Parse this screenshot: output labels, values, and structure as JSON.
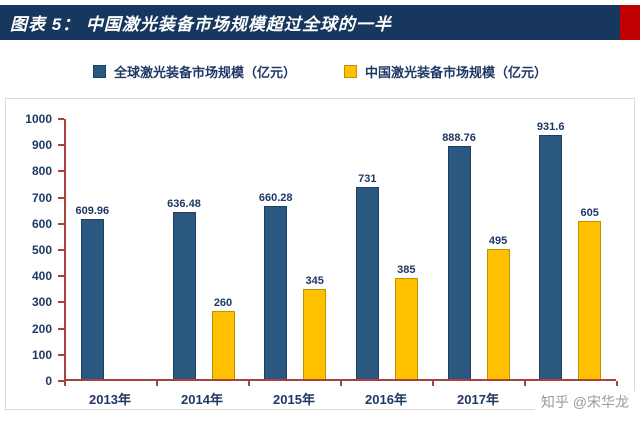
{
  "header": {
    "title": "图表 5： 中国激光装备市场规模超过全球的一半"
  },
  "colors": {
    "banner_bg": "#17375E",
    "banner_accent": "#C00000",
    "axis": "#A8423C",
    "axis_text": "#1F3864"
  },
  "chart_data": {
    "type": "bar",
    "title": "中国激光装备市场规模超过全球的一半",
    "categories": [
      "2013年",
      "2014年",
      "2015年",
      "2016年",
      "2017年",
      "2018年"
    ],
    "series": [
      {
        "key": "global",
        "name": "全球激光装备市场规模（亿元）",
        "color": "#2B5880",
        "border": "#1E3F5F",
        "values": [
          609.96,
          636.48,
          660.28,
          731,
          888.76,
          931.6
        ]
      },
      {
        "key": "china",
        "name": "中国激光装备市场规模（亿元）",
        "color": "#FFC000",
        "border": "#BF9000",
        "values": [
          null,
          260,
          345,
          385,
          495,
          605
        ]
      }
    ],
    "ylim": [
      0,
      1000
    ],
    "ytick_step": 100,
    "grid": false,
    "legend_position": "top"
  },
  "watermark": "知乎 @宋华龙"
}
